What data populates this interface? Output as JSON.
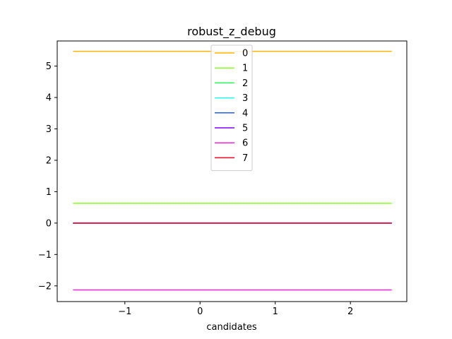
{
  "chart_data": {
    "type": "line",
    "title": "robust_z_debug",
    "xlabel": "candidates",
    "ylabel": "",
    "xlim": [
      -1.9,
      2.75
    ],
    "ylim": [
      -2.5,
      5.8
    ],
    "x": [
      -1.69,
      2.55
    ],
    "xticks": [
      -1,
      0,
      1,
      2
    ],
    "xtick_labels": [
      "−1",
      "0",
      "1",
      "2"
    ],
    "yticks": [
      -2,
      -1,
      0,
      1,
      2,
      3,
      4,
      5
    ],
    "ytick_labels": [
      "−2",
      "−1",
      "0",
      "1",
      "2",
      "3",
      "4",
      "5"
    ],
    "grid": false,
    "legend_position": "top-center",
    "series": [
      {
        "name": "0",
        "color": "#ffb300",
        "values": [
          5.47,
          5.47
        ]
      },
      {
        "name": "1",
        "color": "#88ff22",
        "values": [
          0.63,
          0.63
        ]
      },
      {
        "name": "2",
        "color": "#22ff55",
        "values": [
          0.0,
          0.0
        ]
      },
      {
        "name": "3",
        "color": "#22ffe6",
        "values": [
          0.0,
          0.0
        ]
      },
      {
        "name": "4",
        "color": "#1e5fe6",
        "values": [
          0.0,
          0.0
        ]
      },
      {
        "name": "5",
        "color": "#7a00ff",
        "values": [
          0.0,
          0.0
        ]
      },
      {
        "name": "6",
        "color": "#ff22dd",
        "values": [
          -2.13,
          -2.13
        ]
      },
      {
        "name": "7",
        "color": "#ff0022",
        "values": [
          0.0,
          0.0
        ]
      }
    ]
  }
}
